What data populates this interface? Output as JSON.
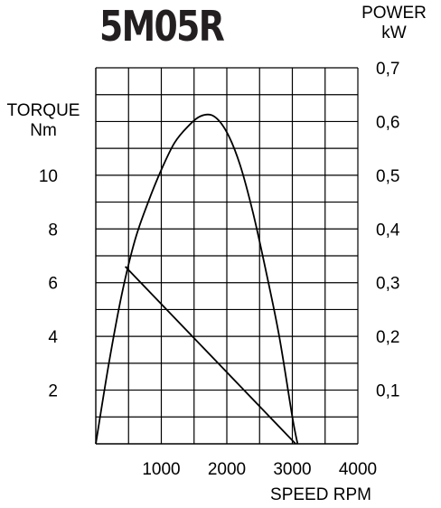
{
  "chart_data": {
    "type": "line",
    "title": "5M05R",
    "left_axis": {
      "label_line1": "TORQUE",
      "label_line2": "Nm",
      "ticks": [
        "2",
        "4",
        "6",
        "8",
        "10"
      ],
      "range": [
        0,
        14
      ]
    },
    "right_axis": {
      "label_line1": "POWER",
      "label_line2": "kW",
      "ticks": [
        "0,1",
        "0,2",
        "0,3",
        "0,4",
        "0,5",
        "0,6",
        "0,7"
      ],
      "range": [
        0,
        0.7
      ]
    },
    "x_axis": {
      "label": "SPEED RPM",
      "ticks": [
        "1000",
        "2000",
        "3000",
        "4000"
      ],
      "range": [
        0,
        4000
      ]
    },
    "grid": true,
    "series": [
      {
        "axis": "torque",
        "x": [
          450,
          3050
        ],
        "y": [
          6.6,
          0
        ]
      },
      {
        "axis": "power",
        "x": [
          0,
          200,
          400,
          600,
          800,
          1000,
          1200,
          1400,
          1600,
          1800,
          2000,
          2200,
          2400,
          2600,
          2800,
          3000,
          3080
        ],
        "y": [
          0,
          0.15,
          0.28,
          0.38,
          0.45,
          0.51,
          0.56,
          0.59,
          0.61,
          0.61,
          0.58,
          0.52,
          0.43,
          0.32,
          0.2,
          0.05,
          0
        ]
      }
    ]
  }
}
